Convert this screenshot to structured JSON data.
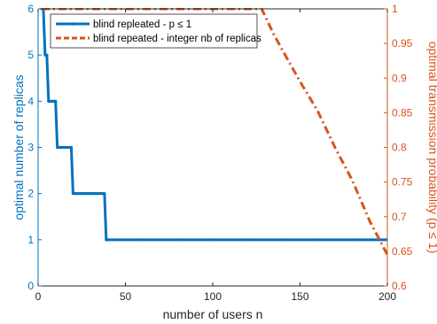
{
  "chart_data": {
    "type": "line",
    "xlabel": "number of users n",
    "ylabel_left": "optimal number of replicas",
    "ylabel_right": "optimal transmission probability (p ≤ 1)",
    "xlim": [
      0,
      200
    ],
    "ylim_left": [
      0,
      6
    ],
    "ylim_right": [
      0.6,
      1
    ],
    "x_ticks": [
      "0",
      "50",
      "100",
      "150",
      "200"
    ],
    "y_ticks_left": [
      "0",
      "1",
      "2",
      "3",
      "4",
      "5",
      "6"
    ],
    "y_ticks_right": [
      "0.6",
      "0.65",
      "0.7",
      "0.75",
      "0.8",
      "0.85",
      "0.9",
      "0.95",
      "1"
    ],
    "grid": false,
    "legend_position": "top-left",
    "colors": {
      "left_axis": "#0072BD",
      "right_axis": "#D95319"
    },
    "series": [
      {
        "name": "blind repleated - p ≤ 1",
        "axis": "left",
        "style": "solid-with-markers",
        "x": [
          2,
          3,
          4,
          5,
          6,
          7,
          8,
          9,
          10,
          11,
          12,
          13,
          14,
          15,
          16,
          17,
          18,
          19,
          20,
          21,
          22,
          23,
          24,
          25,
          26,
          27,
          28,
          29,
          30,
          31,
          32,
          33,
          34,
          35,
          36,
          37,
          38,
          39,
          40,
          60,
          80,
          100,
          120,
          140,
          160,
          180,
          200
        ],
        "y": [
          6,
          6,
          5,
          5,
          4,
          4,
          4,
          4,
          4,
          3,
          3,
          3,
          3,
          3,
          3,
          3,
          3,
          3,
          2,
          2,
          2,
          2,
          2,
          2,
          2,
          2,
          2,
          2,
          2,
          2,
          2,
          2,
          2,
          2,
          2,
          2,
          2,
          1,
          1,
          1,
          1,
          1,
          1,
          1,
          1,
          1,
          1
        ]
      },
      {
        "name": "blind repeated - integer nb of replicas",
        "axis": "right",
        "style": "dash-dot",
        "x": [
          2,
          40,
          80,
          100,
          120,
          128,
          135,
          140,
          150,
          160,
          170,
          180,
          190,
          200
        ],
        "y": [
          1,
          1,
          1,
          1,
          1,
          1,
          0.963,
          0.94,
          0.895,
          0.853,
          0.8,
          0.752,
          0.693,
          0.645
        ]
      }
    ]
  }
}
